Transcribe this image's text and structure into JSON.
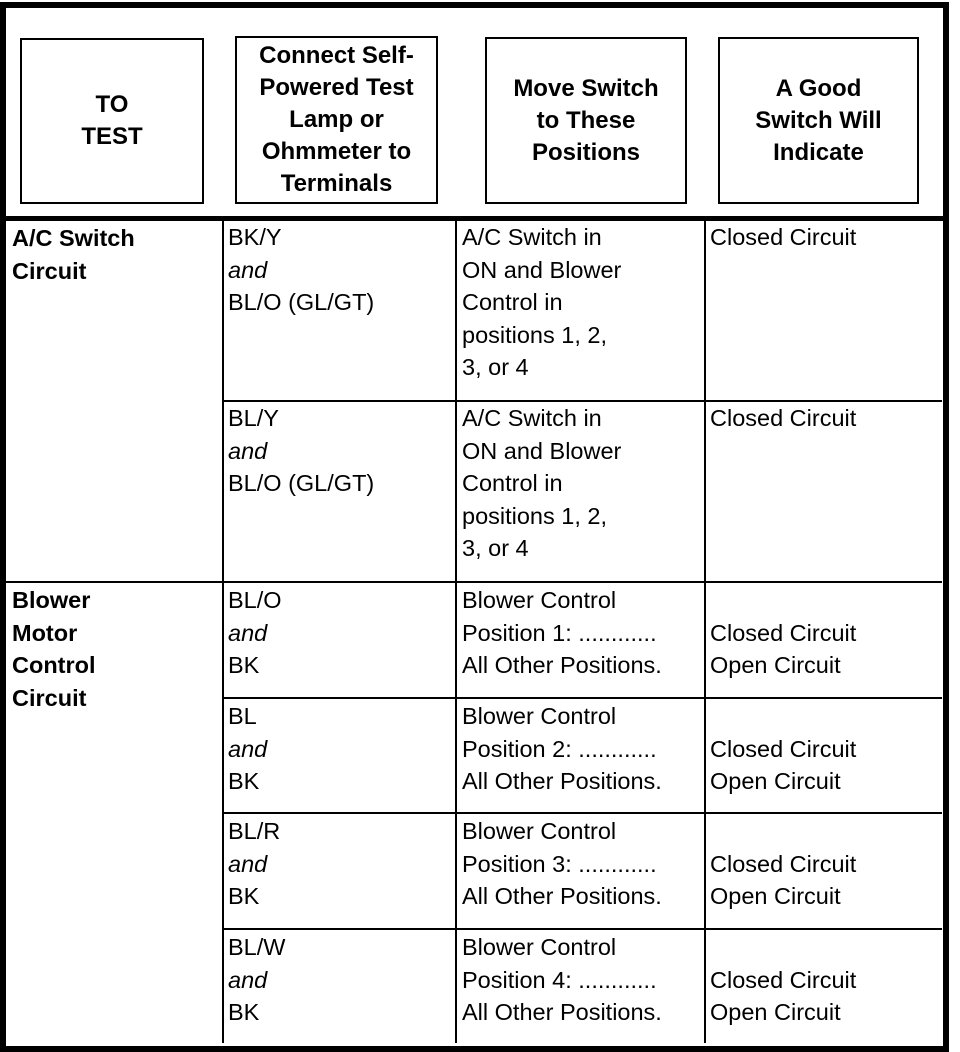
{
  "headers": [
    "TO\nTEST",
    "Connect Self-\nPowered Test\nLamp or\nOhmmeter to\nTerminals",
    "Move Switch\nto These\nPositions",
    "A Good\nSwitch Will\nIndicate"
  ],
  "groups": [
    {
      "label": "A/C Switch\nCircuit"
    },
    {
      "label": "Blower\nMotor\nControl\nCircuit"
    }
  ],
  "rows": [
    {
      "t1": "BK/Y",
      "conj": "and",
      "t2": "BL/O (GL/GT)",
      "pos": "A/C Switch in\nON and Blower\nControl in\npositions 1, 2,\n3, or 4",
      "ind": "Closed Circuit"
    },
    {
      "t1": "BL/Y",
      "conj": "and",
      "t2": "BL/O (GL/GT)",
      "pos": "A/C Switch in\nON and Blower\nControl in\npositions 1, 2,\n3, or 4",
      "ind": "Closed Circuit"
    },
    {
      "t1": "BL/O",
      "conj": "and",
      "t2": "BK",
      "pos": "Blower Control\nPosition 1: ............\nAll Other Positions.",
      "ind": "\nClosed Circuit\nOpen Circuit"
    },
    {
      "t1": "BL",
      "conj": "and",
      "t2": "BK",
      "pos": "Blower Control\nPosition 2: ............\nAll Other Positions.",
      "ind": "\nClosed Circuit\nOpen Circuit"
    },
    {
      "t1": "BL/R",
      "conj": "and",
      "t2": "BK",
      "pos": "Blower Control\nPosition 3: ............\nAll Other Positions.",
      "ind": "\nClosed Circuit\nOpen Circuit"
    },
    {
      "t1": "BL/W",
      "conj": "and",
      "t2": "BK",
      "pos": "Blower Control\nPosition 4: ............\nAll Other Positions.",
      "ind": "\nClosed Circuit\nOpen Circuit"
    }
  ]
}
